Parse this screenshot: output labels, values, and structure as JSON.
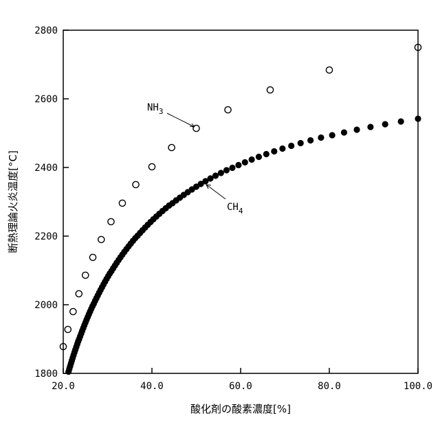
{
  "chart_data": {
    "type": "scatter",
    "title": "",
    "xlabel": "酸化剤の酸素濃度[%]",
    "ylabel": "断熱理論火炎温度[°C]",
    "xlim": [
      20,
      100
    ],
    "ylim": [
      1800,
      2800
    ],
    "x_ticks": [
      "20.0",
      "40.0",
      "60.0",
      "80.0",
      "100.0"
    ],
    "y_ticks": [
      "1800",
      "2000",
      "2200",
      "2400",
      "2600",
      "2800"
    ],
    "grid": false,
    "series": [
      {
        "name": "NH3",
        "label_main": "NH",
        "label_sub": "3",
        "marker": "open-circle",
        "x": [
          100,
          80,
          66.67,
          57.14,
          50,
          44.44,
          40,
          36.36,
          33.33,
          30.77,
          28.57,
          26.67,
          25,
          23.53,
          22.22,
          21.05,
          20.0
        ],
        "y": [
          2750,
          2684,
          2626,
          2568,
          2514,
          2458,
          2402,
          2350,
          2296,
          2242,
          2190,
          2138,
          2086,
          2032,
          1980,
          1928,
          1878
        ],
        "annotation_point": [
          50,
          2514
        ]
      },
      {
        "name": "CH4",
        "label_main": "CH",
        "label_sub": "4",
        "marker": "filled-circle",
        "x": [
          100,
          96.15,
          92.59,
          89.29,
          86.21,
          83.33,
          80.65,
          78.13,
          75.76,
          73.53,
          71.43,
          69.44,
          67.57,
          65.79,
          64.1,
          62.5,
          60.98,
          59.52,
          58.14,
          56.82,
          55.56,
          54.35,
          53.19,
          52.08,
          51.02,
          50,
          49.02,
          48.08,
          47.17,
          46.3,
          45.45,
          44.64,
          43.86,
          43.1,
          42.37,
          41.67,
          40.98,
          40.32,
          39.68,
          39.06,
          38.46,
          37.88,
          37.31,
          36.76,
          36.23,
          35.71,
          35.21,
          34.72,
          34.25,
          33.78,
          33.33,
          32.89,
          32.47,
          32.05,
          31.65,
          31.25,
          30.86,
          30.49,
          30.12,
          29.76,
          29.41,
          29.07,
          28.74,
          28.41,
          28.09,
          27.78,
          27.47,
          27.17,
          26.88,
          26.6,
          26.32,
          26.04,
          25.77,
          25.51,
          25.25,
          25,
          24.75,
          24.51,
          24.27,
          24.04,
          23.81,
          23.58,
          23.36,
          23.15,
          22.94,
          22.73,
          22.52,
          22.32,
          22.12,
          21.93,
          21.74,
          21.55,
          21.37,
          21.19
        ],
        "y": [
          2542,
          2534,
          2526,
          2518,
          2510,
          2502,
          2494,
          2487,
          2479,
          2471,
          2463,
          2455,
          2447,
          2439,
          2431,
          2423,
          2415,
          2407,
          2399,
          2392,
          2384,
          2376,
          2368,
          2360,
          2352,
          2344,
          2336,
          2328,
          2320,
          2312,
          2304,
          2296,
          2289,
          2281,
          2273,
          2265,
          2257,
          2249,
          2241,
          2233,
          2225,
          2217,
          2209,
          2201,
          2194,
          2186,
          2178,
          2170,
          2162,
          2154,
          2146,
          2138,
          2130,
          2122,
          2114,
          2106,
          2098,
          2091,
          2083,
          2075,
          2067,
          2059,
          2051,
          2043,
          2035,
          2027,
          2019,
          2011,
          2003,
          1996,
          1988,
          1980,
          1972,
          1964,
          1956,
          1948,
          1940,
          1932,
          1924,
          1916,
          1908,
          1900,
          1893,
          1885,
          1877,
          1869,
          1861,
          1853,
          1845,
          1837,
          1829,
          1821,
          1813,
          1805
        ],
        "annotation_point": [
          51,
          2348
        ]
      }
    ]
  }
}
